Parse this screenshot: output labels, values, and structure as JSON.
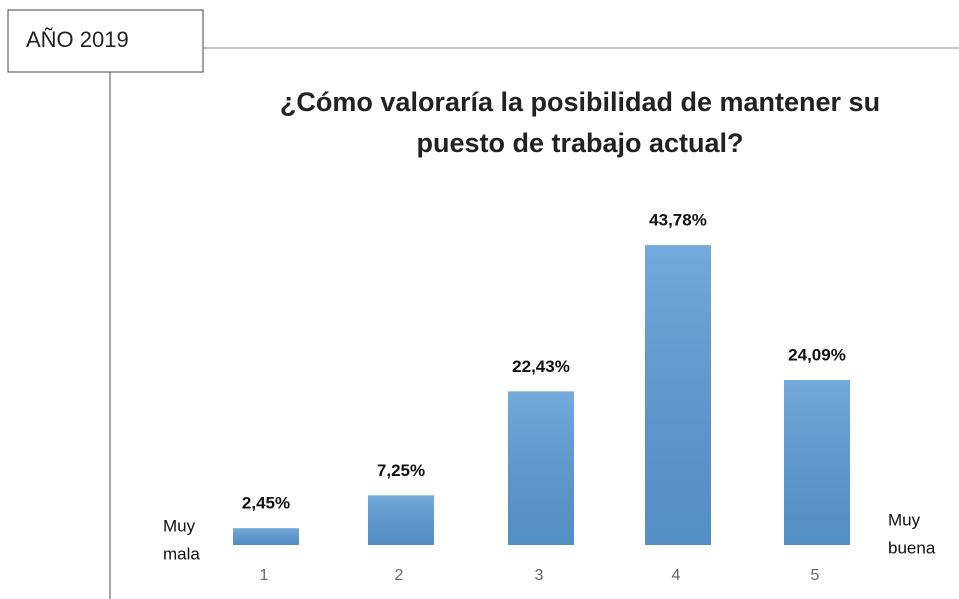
{
  "label": "AÑO 2019",
  "chart_data": {
    "type": "bar",
    "title": [
      "¿Cómo valoraría la posibilidad de mantener su",
      "puesto de trabajo actual?"
    ],
    "categories": [
      "1",
      "2",
      "3",
      "4",
      "5"
    ],
    "values": [
      2.45,
      7.25,
      22.43,
      43.78,
      24.09
    ],
    "value_labels": [
      "2,45%",
      "7,25%",
      "22,43%",
      "43,78%",
      "24,09%"
    ],
    "color": "#5b9bd5",
    "annotations": [
      [
        "Muy",
        "mala"
      ],
      [
        "Muy",
        "buena"
      ]
    ]
  }
}
